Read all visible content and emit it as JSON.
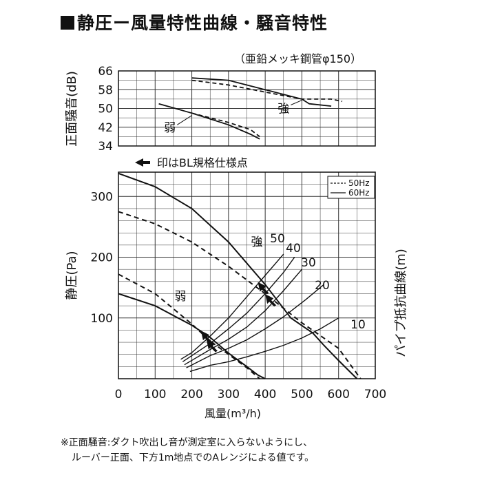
{
  "title": "静圧ー風量特性曲線・騒音特性",
  "subtitle": "（亜鉛メッキ鋼管φ150）",
  "notes": {
    "line1": "※正面騒音:ダクト吹出し音が測定室に入らないようにし、",
    "line2": "ルーバー正面、下方1m地点でのAレンジによる値です。"
  },
  "chart_data": [
    {
      "type": "line",
      "ylabel": "正面騒音(dB)",
      "y_ticks": [
        "66",
        "58",
        "50",
        "42",
        "34"
      ],
      "ylim": [
        34,
        66
      ],
      "xlim": [
        0,
        700
      ],
      "grid": true,
      "annotations": [
        {
          "text": "強"
        },
        {
          "text": "弱"
        }
      ],
      "series": [
        {
          "name": "強",
          "hz": "60Hz",
          "style": "solid",
          "x": [
            200,
            300,
            400,
            500,
            520,
            580
          ],
          "y": [
            63,
            62,
            58,
            54,
            52,
            51
          ]
        },
        {
          "name": "強",
          "hz": "50Hz",
          "style": "dashed",
          "x": [
            200,
            300,
            400,
            500,
            580,
            610
          ],
          "y": [
            62,
            60,
            57,
            54,
            54,
            53
          ]
        },
        {
          "name": "弱",
          "hz": "60Hz",
          "style": "solid",
          "x": [
            110,
            200,
            300,
            360,
            385
          ],
          "y": [
            52,
            48,
            43,
            39,
            37
          ]
        },
        {
          "name": "弱",
          "hz": "50Hz",
          "style": "dashed",
          "x": [
            200,
            300,
            360,
            385
          ],
          "y": [
            48,
            44,
            41,
            38
          ]
        }
      ]
    },
    {
      "type": "line",
      "note_text": "印はBL規格仕様点",
      "xlabel": "風量(m³/h)",
      "ylabel": "静圧(Pa)",
      "y2label": "パイプ抵抗曲線(m)",
      "x_ticks": [
        "0",
        "100",
        "200",
        "300",
        "400",
        "500",
        "600",
        "700"
      ],
      "y_ticks": [
        "100",
        "200",
        "300"
      ],
      "xlim": [
        0,
        700
      ],
      "ylim": [
        0,
        340
      ],
      "grid": true,
      "legend": {
        "placement": "top-right",
        "entries": [
          {
            "label": "50Hz",
            "style": "dashed"
          },
          {
            "label": "60Hz",
            "style": "solid"
          }
        ]
      },
      "annotations": [
        {
          "text": "強"
        },
        {
          "text": "弱"
        }
      ],
      "series": [
        {
          "name": "強",
          "hz": "60Hz",
          "style": "solid",
          "x": [
            0,
            100,
            200,
            300,
            400,
            470,
            530,
            560,
            600,
            650
          ],
          "y": [
            338,
            316,
            280,
            225,
            155,
            100,
            75,
            55,
            30,
            0
          ]
        },
        {
          "name": "強",
          "hz": "50Hz",
          "style": "dashed",
          "x": [
            0,
            100,
            200,
            300,
            400,
            500,
            600,
            660
          ],
          "y": [
            275,
            255,
            225,
            185,
            140,
            92,
            50,
            0
          ]
        },
        {
          "name": "弱",
          "hz": "60Hz",
          "style": "solid",
          "x": [
            0,
            100,
            200,
            250,
            300,
            350,
            380,
            400
          ],
          "y": [
            140,
            120,
            88,
            68,
            42,
            20,
            6,
            0
          ]
        },
        {
          "name": "弱",
          "hz": "50Hz",
          "style": "dashed",
          "x": [
            0,
            100,
            200,
            250,
            300,
            350,
            385
          ],
          "y": [
            172,
            140,
            90,
            62,
            40,
            18,
            0
          ]
        }
      ],
      "resistance_curves": [
        {
          "label": "50",
          "x": [
            170,
            200,
            250,
            300,
            350,
            400,
            450
          ],
          "y": [
            32,
            43,
            70,
            100,
            135,
            170,
            205
          ]
        },
        {
          "label": "40",
          "x": [
            175,
            250,
            300,
            350,
            400,
            450,
            480
          ],
          "y": [
            28,
            58,
            82,
            108,
            140,
            175,
            200
          ]
        },
        {
          "label": "30",
          "x": [
            180,
            250,
            300,
            350,
            400,
            450,
            500
          ],
          "y": [
            23,
            48,
            65,
            85,
            112,
            145,
            180
          ]
        },
        {
          "label": "20",
          "x": [
            185,
            250,
            300,
            350,
            400,
            450,
            510,
            560
          ],
          "y": [
            18,
            38,
            50,
            64,
            82,
            102,
            130,
            155
          ]
        },
        {
          "label": "10",
          "x": [
            195,
            250,
            300,
            350,
            400,
            450,
            500,
            550,
            600
          ],
          "y": [
            12,
            22,
            28,
            36,
            45,
            55,
            67,
            82,
            100
          ]
        }
      ],
      "curve_labels": [
        "50",
        "40",
        "30",
        "20",
        "10"
      ],
      "bl_points": [
        {
          "x": 240,
          "y": 70
        },
        {
          "x": 255,
          "y": 55
        },
        {
          "x": 395,
          "y": 150
        },
        {
          "x": 415,
          "y": 130
        }
      ]
    }
  ]
}
